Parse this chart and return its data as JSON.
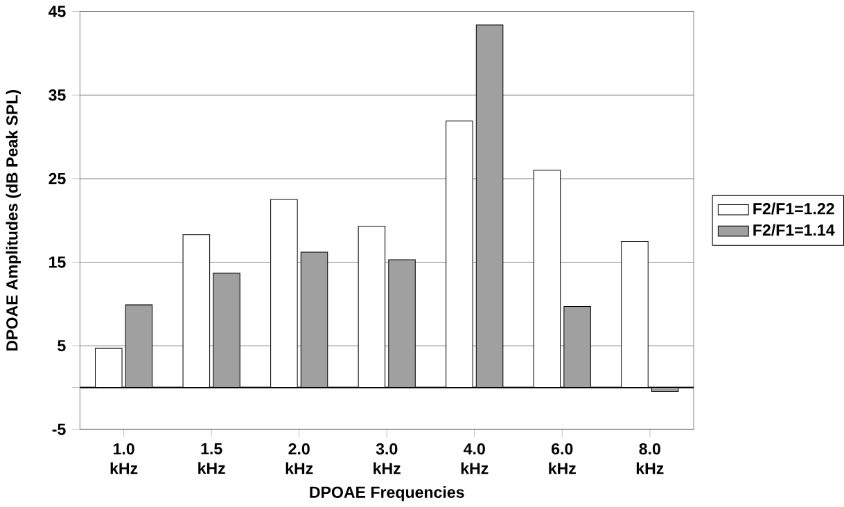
{
  "chart_data": {
    "type": "bar",
    "xlabel": "DPOAE Frequencies",
    "ylabel": "DPOAE Amplitudes (dB Peak SPL)",
    "categories": [
      "1.0 kHz",
      "1.5 kHz",
      "2.0 kHz",
      "3.0 kHz",
      "4.0 kHz",
      "6.0 kHz",
      "8.0 kHz"
    ],
    "series": [
      {
        "name": "F2/F1=1.22",
        "color": "#ffffff",
        "values": [
          4.7,
          18.3,
          22.5,
          19.3,
          31.9,
          26.0,
          17.5
        ]
      },
      {
        "name": "F2/F1=1.14",
        "color": "#a0a0a0",
        "values": [
          9.9,
          13.7,
          16.2,
          15.3,
          43.4,
          9.7,
          -0.5
        ]
      }
    ],
    "ylim": [
      -5,
      45
    ],
    "yticks": [
      -5,
      5,
      15,
      25,
      35,
      45
    ],
    "grid": "y",
    "legend": "right"
  }
}
